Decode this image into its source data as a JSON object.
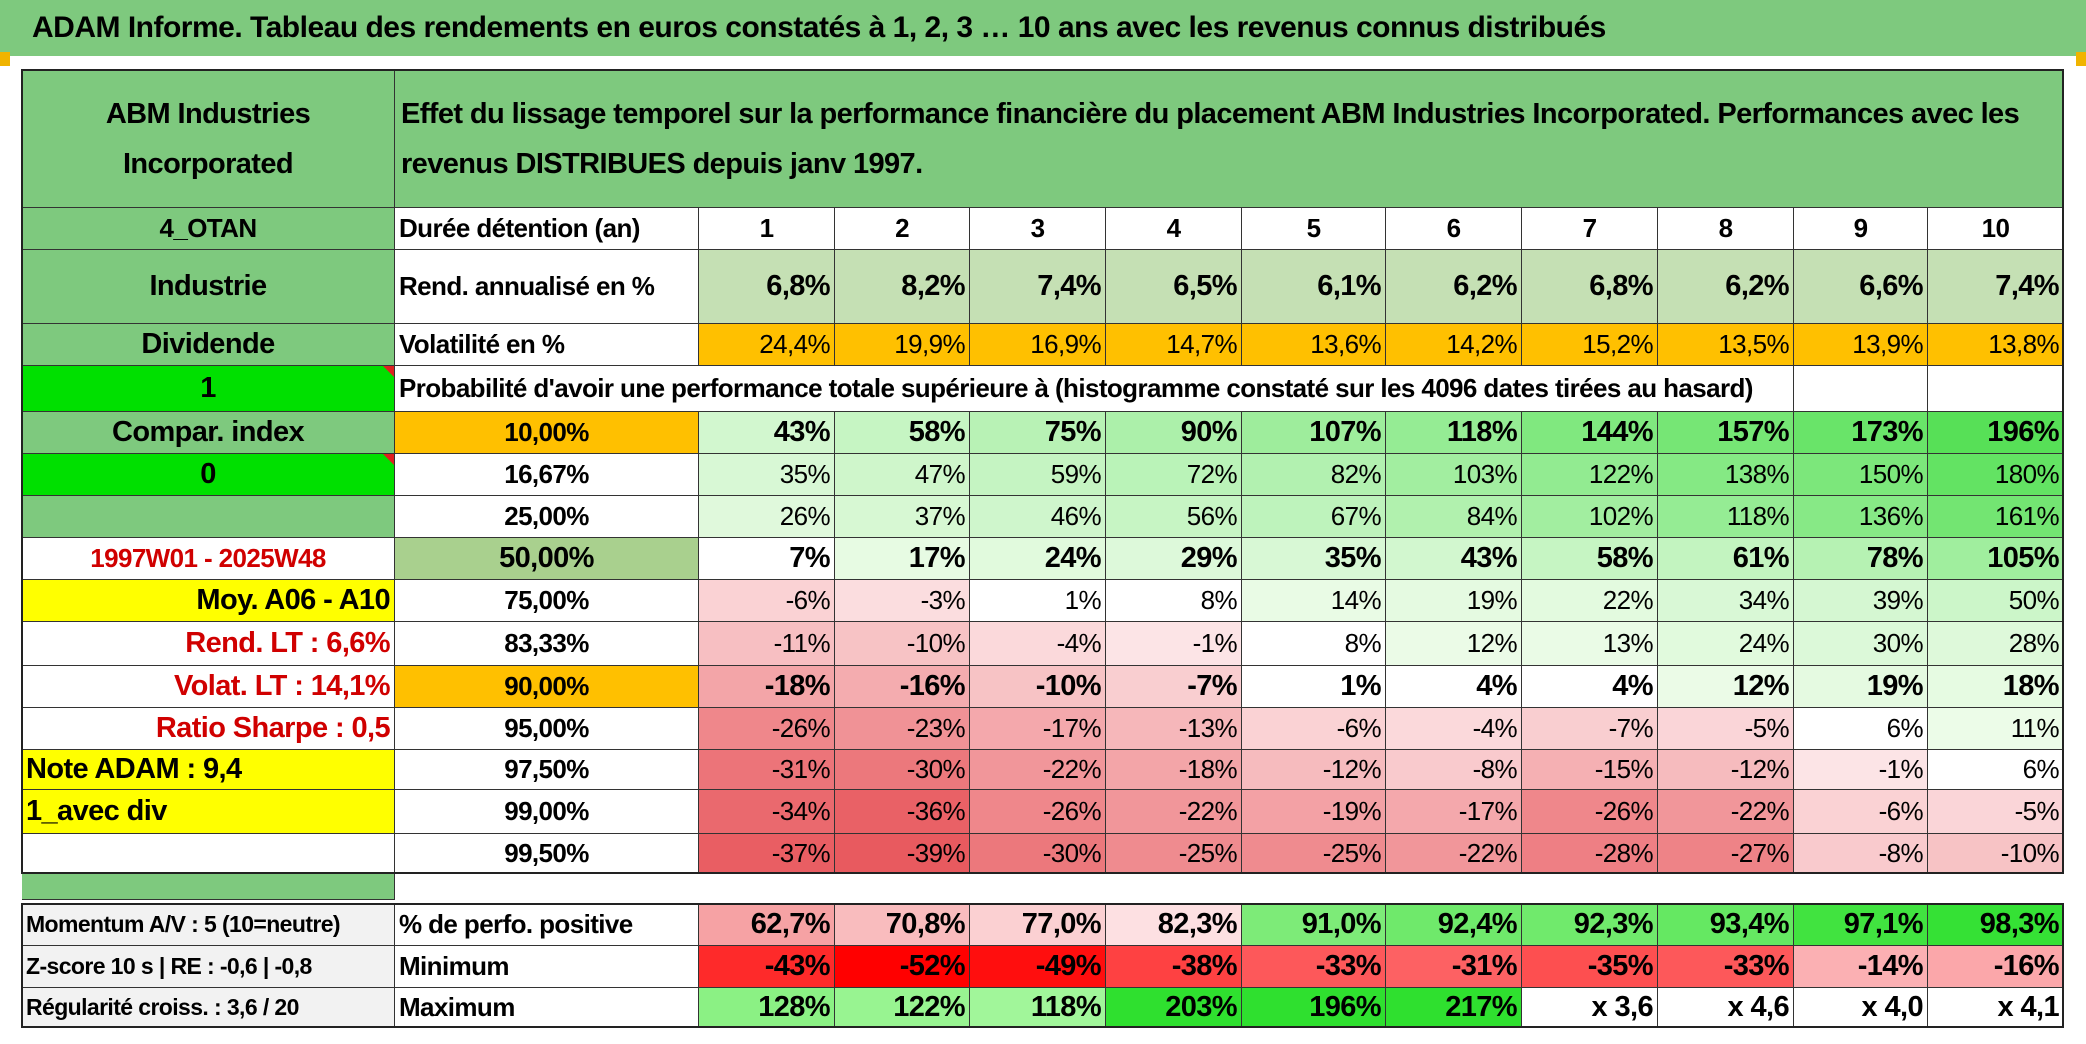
{
  "title": "ADAM Informe. Tableau des rendements en euros constatés à 1, 2, 3 … 10 ans avec les revenus connus distribués",
  "colors": {
    "header_green": "#7ec97e",
    "bright_green": "#00e000",
    "yellow": "#ffff00",
    "orange": "#ffc000",
    "light_green": "#c5e0b4",
    "red": "#ff0000"
  },
  "left": {
    "company": "ABM Industries Incorporated",
    "code": "4_OTAN",
    "sector": "Industrie",
    "dividend_label": "Dividende",
    "flag1": "1",
    "compar_index": "Compar. index",
    "flag0": "0",
    "blank": "",
    "period": "1997W01 - 2025W48",
    "moy": "Moy. A06 - A10",
    "rend_lt": "Rend. LT :   6,6%",
    "volat_lt": "Volat. LT :   14,1%",
    "sharpe": "Ratio Sharpe :   0,5",
    "note": "Note ADAM : 9,4",
    "avec_div": "1_avec div",
    "momentum": "Momentum A/V : 5 (10=neutre)",
    "zscore": "Z-score 10 s | RE : -0,6 | -0,8",
    "regularite": "Régularité croiss. : 3,6 / 20"
  },
  "header_text": "Effet du lissage temporel sur la performance financière du placement ABM Industries Incorporated. Performances avec les revenus DISTRIBUES depuis janv 1997.",
  "labels": {
    "duree": "Durée détention (an)",
    "rend": "Rend. annualisé en %",
    "vol": "Volatilité en %",
    "prob": "Probabilité d'avoir une performance totale supérieure à (histogramme constaté sur les 4096 dates tirées au hasard)",
    "pos": "% de perfo. positive",
    "min": "Minimum",
    "max": "Maximum"
  },
  "years": [
    "1",
    "2",
    "3",
    "4",
    "5",
    "6",
    "7",
    "8",
    "9",
    "10"
  ],
  "rend": [
    "6,8%",
    "8,2%",
    "7,4%",
    "6,5%",
    "6,1%",
    "6,2%",
    "6,8%",
    "6,2%",
    "6,6%",
    "7,4%"
  ],
  "vol": [
    "24,4%",
    "19,9%",
    "16,9%",
    "14,7%",
    "13,6%",
    "14,2%",
    "15,2%",
    "13,5%",
    "13,9%",
    "13,8%"
  ],
  "prob_rows": [
    {
      "p": "10,00%",
      "v": [
        "43%",
        "58%",
        "75%",
        "90%",
        "107%",
        "118%",
        "144%",
        "157%",
        "173%",
        "196%"
      ]
    },
    {
      "p": "16,67%",
      "v": [
        "35%",
        "47%",
        "59%",
        "72%",
        "82%",
        "103%",
        "122%",
        "138%",
        "150%",
        "180%"
      ]
    },
    {
      "p": "25,00%",
      "v": [
        "26%",
        "37%",
        "46%",
        "56%",
        "67%",
        "84%",
        "102%",
        "118%",
        "136%",
        "161%"
      ]
    },
    {
      "p": "50,00%",
      "v": [
        "7%",
        "17%",
        "24%",
        "29%",
        "35%",
        "43%",
        "58%",
        "61%",
        "78%",
        "105%"
      ]
    },
    {
      "p": "75,00%",
      "v": [
        "-6%",
        "-3%",
        "1%",
        "8%",
        "14%",
        "19%",
        "22%",
        "34%",
        "39%",
        "50%"
      ]
    },
    {
      "p": "83,33%",
      "v": [
        "-11%",
        "-10%",
        "-4%",
        "-1%",
        "8%",
        "12%",
        "13%",
        "24%",
        "30%",
        "28%"
      ]
    },
    {
      "p": "90,00%",
      "v": [
        "-18%",
        "-16%",
        "-10%",
        "-7%",
        "1%",
        "4%",
        "4%",
        "12%",
        "19%",
        "18%"
      ]
    },
    {
      "p": "95,00%",
      "v": [
        "-26%",
        "-23%",
        "-17%",
        "-13%",
        "-6%",
        "-4%",
        "-7%",
        "-5%",
        "6%",
        "11%"
      ]
    },
    {
      "p": "97,50%",
      "v": [
        "-31%",
        "-30%",
        "-22%",
        "-18%",
        "-12%",
        "-8%",
        "-15%",
        "-12%",
        "-1%",
        "6%"
      ]
    },
    {
      "p": "99,00%",
      "v": [
        "-34%",
        "-36%",
        "-26%",
        "-22%",
        "-19%",
        "-17%",
        "-26%",
        "-22%",
        "-6%",
        "-5%"
      ]
    },
    {
      "p": "99,50%",
      "v": [
        "-37%",
        "-39%",
        "-30%",
        "-25%",
        "-25%",
        "-22%",
        "-28%",
        "-27%",
        "-8%",
        "-10%"
      ]
    }
  ],
  "pos": [
    "62,7%",
    "70,8%",
    "77,0%",
    "82,3%",
    "91,0%",
    "92,4%",
    "92,3%",
    "93,4%",
    "97,1%",
    "98,3%"
  ],
  "min": [
    "-43%",
    "-52%",
    "-49%",
    "-38%",
    "-33%",
    "-31%",
    "-35%",
    "-33%",
    "-14%",
    "-16%"
  ],
  "max": [
    "128%",
    "122%",
    "118%",
    "203%",
    "196%",
    "217%",
    "x 3,6",
    "x 4,6",
    "x 4,0",
    "x 4,1"
  ]
}
